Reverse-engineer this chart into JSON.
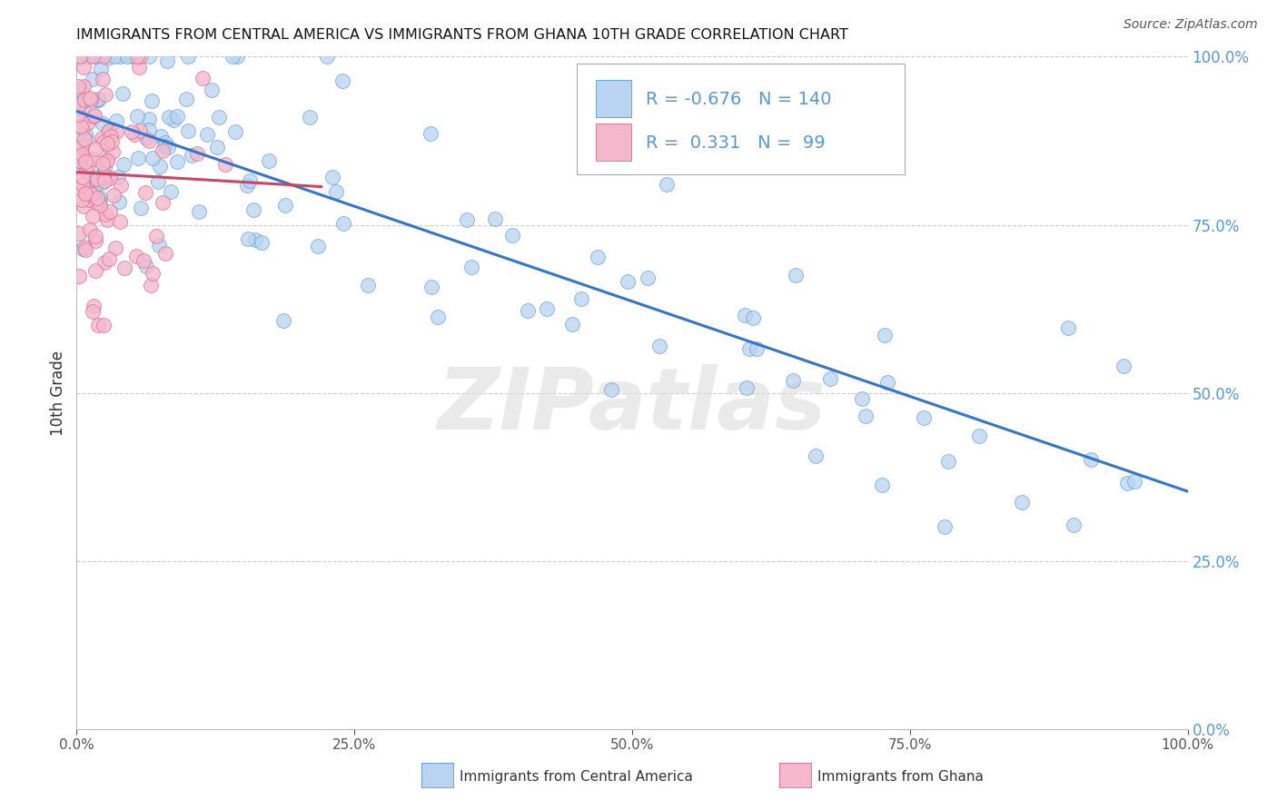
{
  "title": "IMMIGRANTS FROM CENTRAL AMERICA VS IMMIGRANTS FROM GHANA 10TH GRADE CORRELATION CHART",
  "source": "Source: ZipAtlas.com",
  "ylabel": "10th Grade",
  "legend_label1": "Immigrants from Central America",
  "legend_label2": "Immigrants from Ghana",
  "legend_R1": "-0.676",
  "legend_N1": "140",
  "legend_R2": "0.331",
  "legend_N2": "99",
  "blue_fill": "#b8d4f0",
  "blue_edge": "#5599dd",
  "pink_fill": "#f4b8cc",
  "pink_edge": "#dd6688",
  "blue_line": "#3377cc",
  "pink_line": "#cc4466",
  "bg_color": "#ffffff",
  "grid_color": "#cccccc",
  "right_tick_color": "#5599dd",
  "title_color": "#111111",
  "watermark_text": "ZIPatlas",
  "watermark_color": "#dddddd"
}
